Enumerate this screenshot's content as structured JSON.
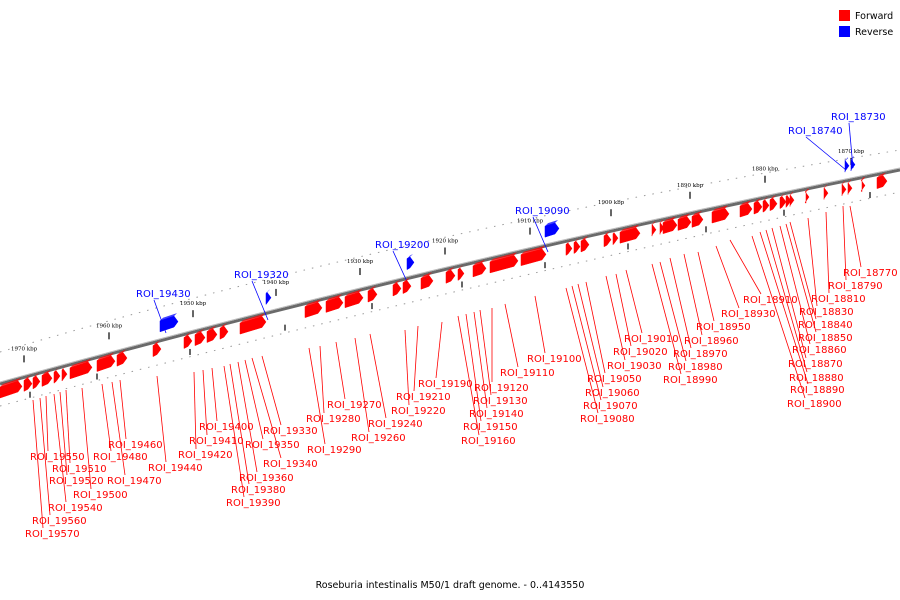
{
  "caption": "Roseburia intestinalis M50/1 draft genome. - 0..4143550",
  "legend": [
    {
      "label": "Forward",
      "color": "#ff0000"
    },
    {
      "label": "Reverse",
      "color": "#0000ff"
    }
  ],
  "colors": {
    "forward": "#ff0000",
    "reverse": "#0000ff",
    "backbone": "#808080"
  },
  "kbp_ticks": [
    "1870 kbp",
    "1880 kbp",
    "1890 kbp",
    "1900 kbp",
    "1910 kbp",
    "1920 kbp",
    "1930 kbp",
    "1940 kbp",
    "1950 kbp",
    "1960 kbp",
    "1970 kbp"
  ],
  "reverse_features": [
    "ROI_18730",
    "ROI_18740",
    "ROI_19090",
    "ROI_19200",
    "ROI_19320",
    "ROI_19430"
  ],
  "forward_features": [
    "ROI_18770",
    "ROI_18790",
    "ROI_18810",
    "ROI_18830",
    "ROI_18840",
    "ROI_18850",
    "ROI_18860",
    "ROI_18870",
    "ROI_18880",
    "ROI_18890",
    "ROI_18900",
    "ROI_18910",
    "ROI_18930",
    "ROI_18950",
    "ROI_18960",
    "ROI_18970",
    "ROI_18980",
    "ROI_18990",
    "ROI_19010",
    "ROI_19020",
    "ROI_19030",
    "ROI_19050",
    "ROI_19060",
    "ROI_19070",
    "ROI_19080",
    "ROI_19100",
    "ROI_19110",
    "ROI_19120",
    "ROI_19130",
    "ROI_19140",
    "ROI_19150",
    "ROI_19160",
    "ROI_19190",
    "ROI_19210",
    "ROI_19220",
    "ROI_19240",
    "ROI_19260",
    "ROI_19270",
    "ROI_19280",
    "ROI_19290",
    "ROI_19330",
    "ROI_19340",
    "ROI_19350",
    "ROI_19360",
    "ROI_19380",
    "ROI_19390",
    "ROI_19400",
    "ROI_19410",
    "ROI_19420",
    "ROI_19440",
    "ROI_19460",
    "ROI_19470",
    "ROI_19480",
    "ROI_19500",
    "ROI_19510",
    "ROI_19520",
    "ROI_19540",
    "ROI_19550",
    "ROI_19560",
    "ROI_19570"
  ]
}
